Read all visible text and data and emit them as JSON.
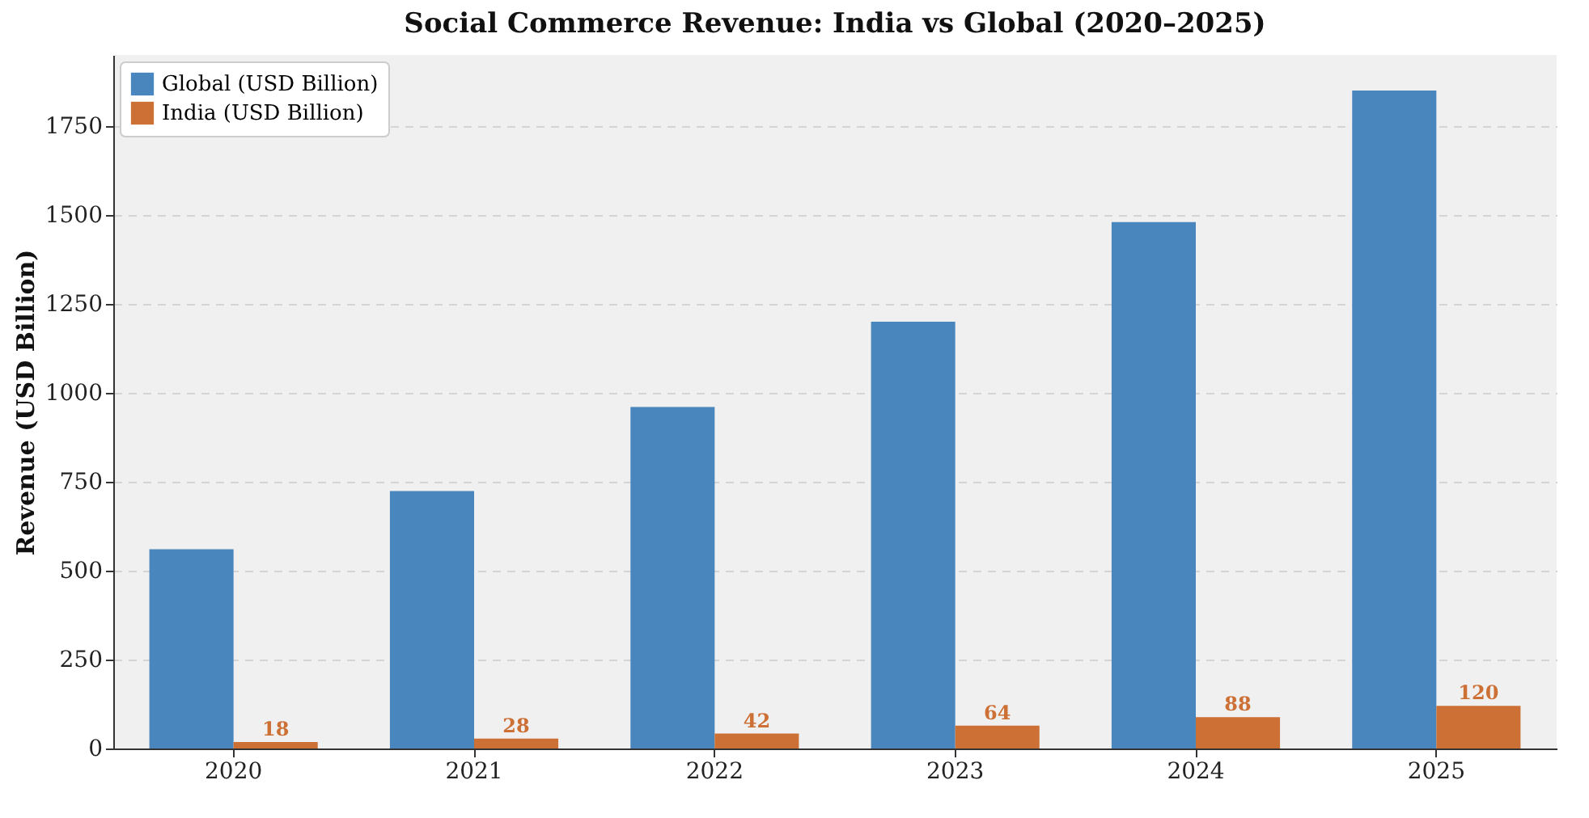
{
  "chart_data": {
    "type": "bar",
    "title": "Social Commerce Revenue: India vs Global (2020–2025)",
    "ylabel": "Revenue (USD Billion)",
    "categories": [
      "2020",
      "2021",
      "2022",
      "2023",
      "2024",
      "2025"
    ],
    "series": [
      {
        "name": "Global (USD Billion)",
        "color": "#4a86be",
        "values": [
          560,
          724,
          960,
          1200,
          1480,
          1850
        ]
      },
      {
        "name": "India (USD Billion)",
        "color": "#cd7035",
        "values": [
          18,
          28,
          42,
          64,
          88,
          120
        ],
        "value_labels": [
          "18",
          "28",
          "42",
          "64",
          "88",
          "120"
        ]
      }
    ],
    "ylim": [
      0,
      1950
    ],
    "yticks": [
      0,
      250,
      500,
      750,
      1000,
      1250,
      1500,
      1750
    ],
    "grid": "y",
    "legend": "top left"
  }
}
